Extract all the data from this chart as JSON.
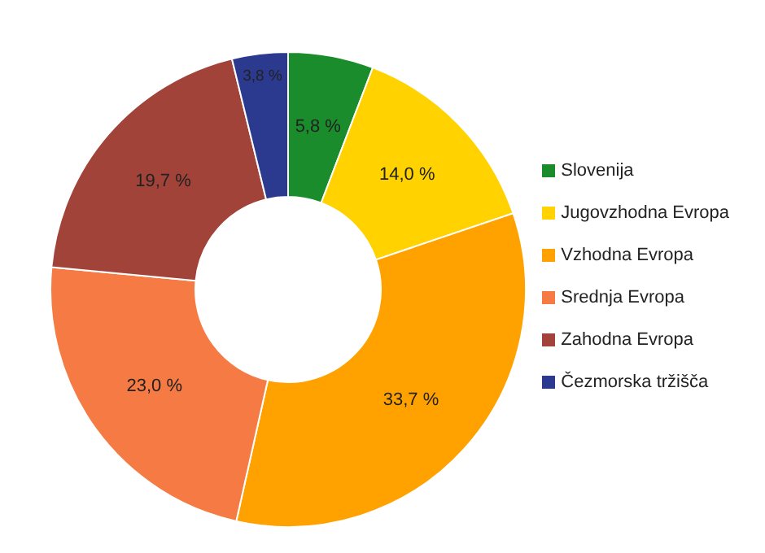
{
  "chart_data": {
    "type": "donut",
    "categories": [
      "Slovenija",
      "Jugovzhodna Evropa",
      "Vzhodna Evropa",
      "Srednja Evropa",
      "Zahodna Evropa",
      "Čezmorska tržišča"
    ],
    "values": [
      5.8,
      14.0,
      33.7,
      23.0,
      19.7,
      3.8
    ],
    "value_labels": [
      "5,8 %",
      "14,0 %",
      "33,7 %",
      "23,0 %",
      "19,7 %",
      "3,8 %"
    ],
    "colors": [
      "#1a8c2c",
      "#ffd200",
      "#ffa200",
      "#f57a43",
      "#a2433a",
      "#2b3a8f"
    ],
    "legend": "right"
  }
}
